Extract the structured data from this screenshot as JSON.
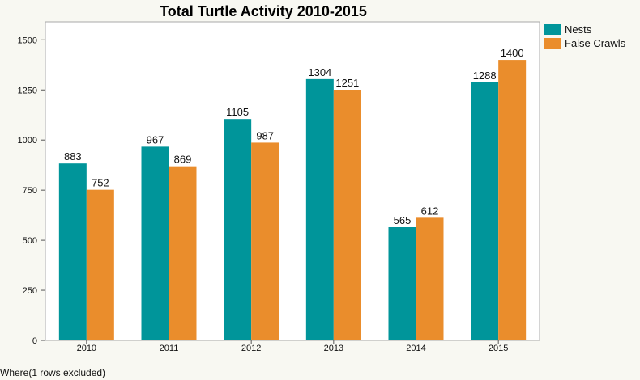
{
  "chart_data": {
    "type": "bar",
    "title": "Total Turtle Activity 2010-2015",
    "categories": [
      "2010",
      "2011",
      "2012",
      "2013",
      "2014",
      "2015"
    ],
    "series": [
      {
        "name": "Nests",
        "color": "#00959a",
        "values": [
          883,
          967,
          1105,
          1304,
          565,
          1288
        ]
      },
      {
        "name": "False Crawls",
        "color": "#ea8d2c",
        "values": [
          752,
          869,
          987,
          1251,
          612,
          1400
        ]
      }
    ],
    "ylim": [
      0,
      1590
    ],
    "yticks": [
      0,
      250,
      500,
      750,
      1000,
      1250,
      1500
    ],
    "xlabel": "",
    "ylabel": "",
    "grid": false,
    "legend_position": "top-right"
  },
  "footer": {
    "note": "Where(1 rows excluded)"
  }
}
